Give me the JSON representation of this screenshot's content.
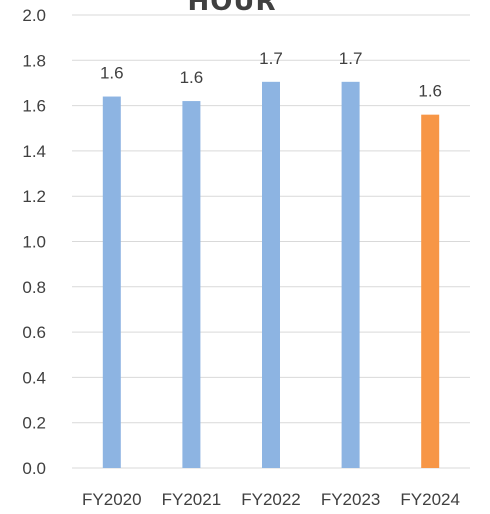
{
  "chart_data": {
    "type": "bar",
    "title": "HOUR",
    "categories": [
      "FY2020",
      "FY2021",
      "FY2022",
      "FY2023",
      "FY2024"
    ],
    "values": [
      1.64,
      1.62,
      1.705,
      1.705,
      1.56
    ],
    "data_labels": [
      "1.6",
      "1.6",
      "1.7",
      "1.7",
      "1.6"
    ],
    "y_ticks": [
      "0.0",
      "0.2",
      "0.4",
      "0.6",
      "0.8",
      "1.0",
      "1.2",
      "1.4",
      "1.6",
      "1.8",
      "2.0"
    ],
    "ylim": [
      0,
      2.0
    ],
    "grid": true,
    "legend": "none",
    "bar_colors": [
      "#8db4e2",
      "#8db4e2",
      "#8db4e2",
      "#8db4e2",
      "#f79646"
    ]
  }
}
